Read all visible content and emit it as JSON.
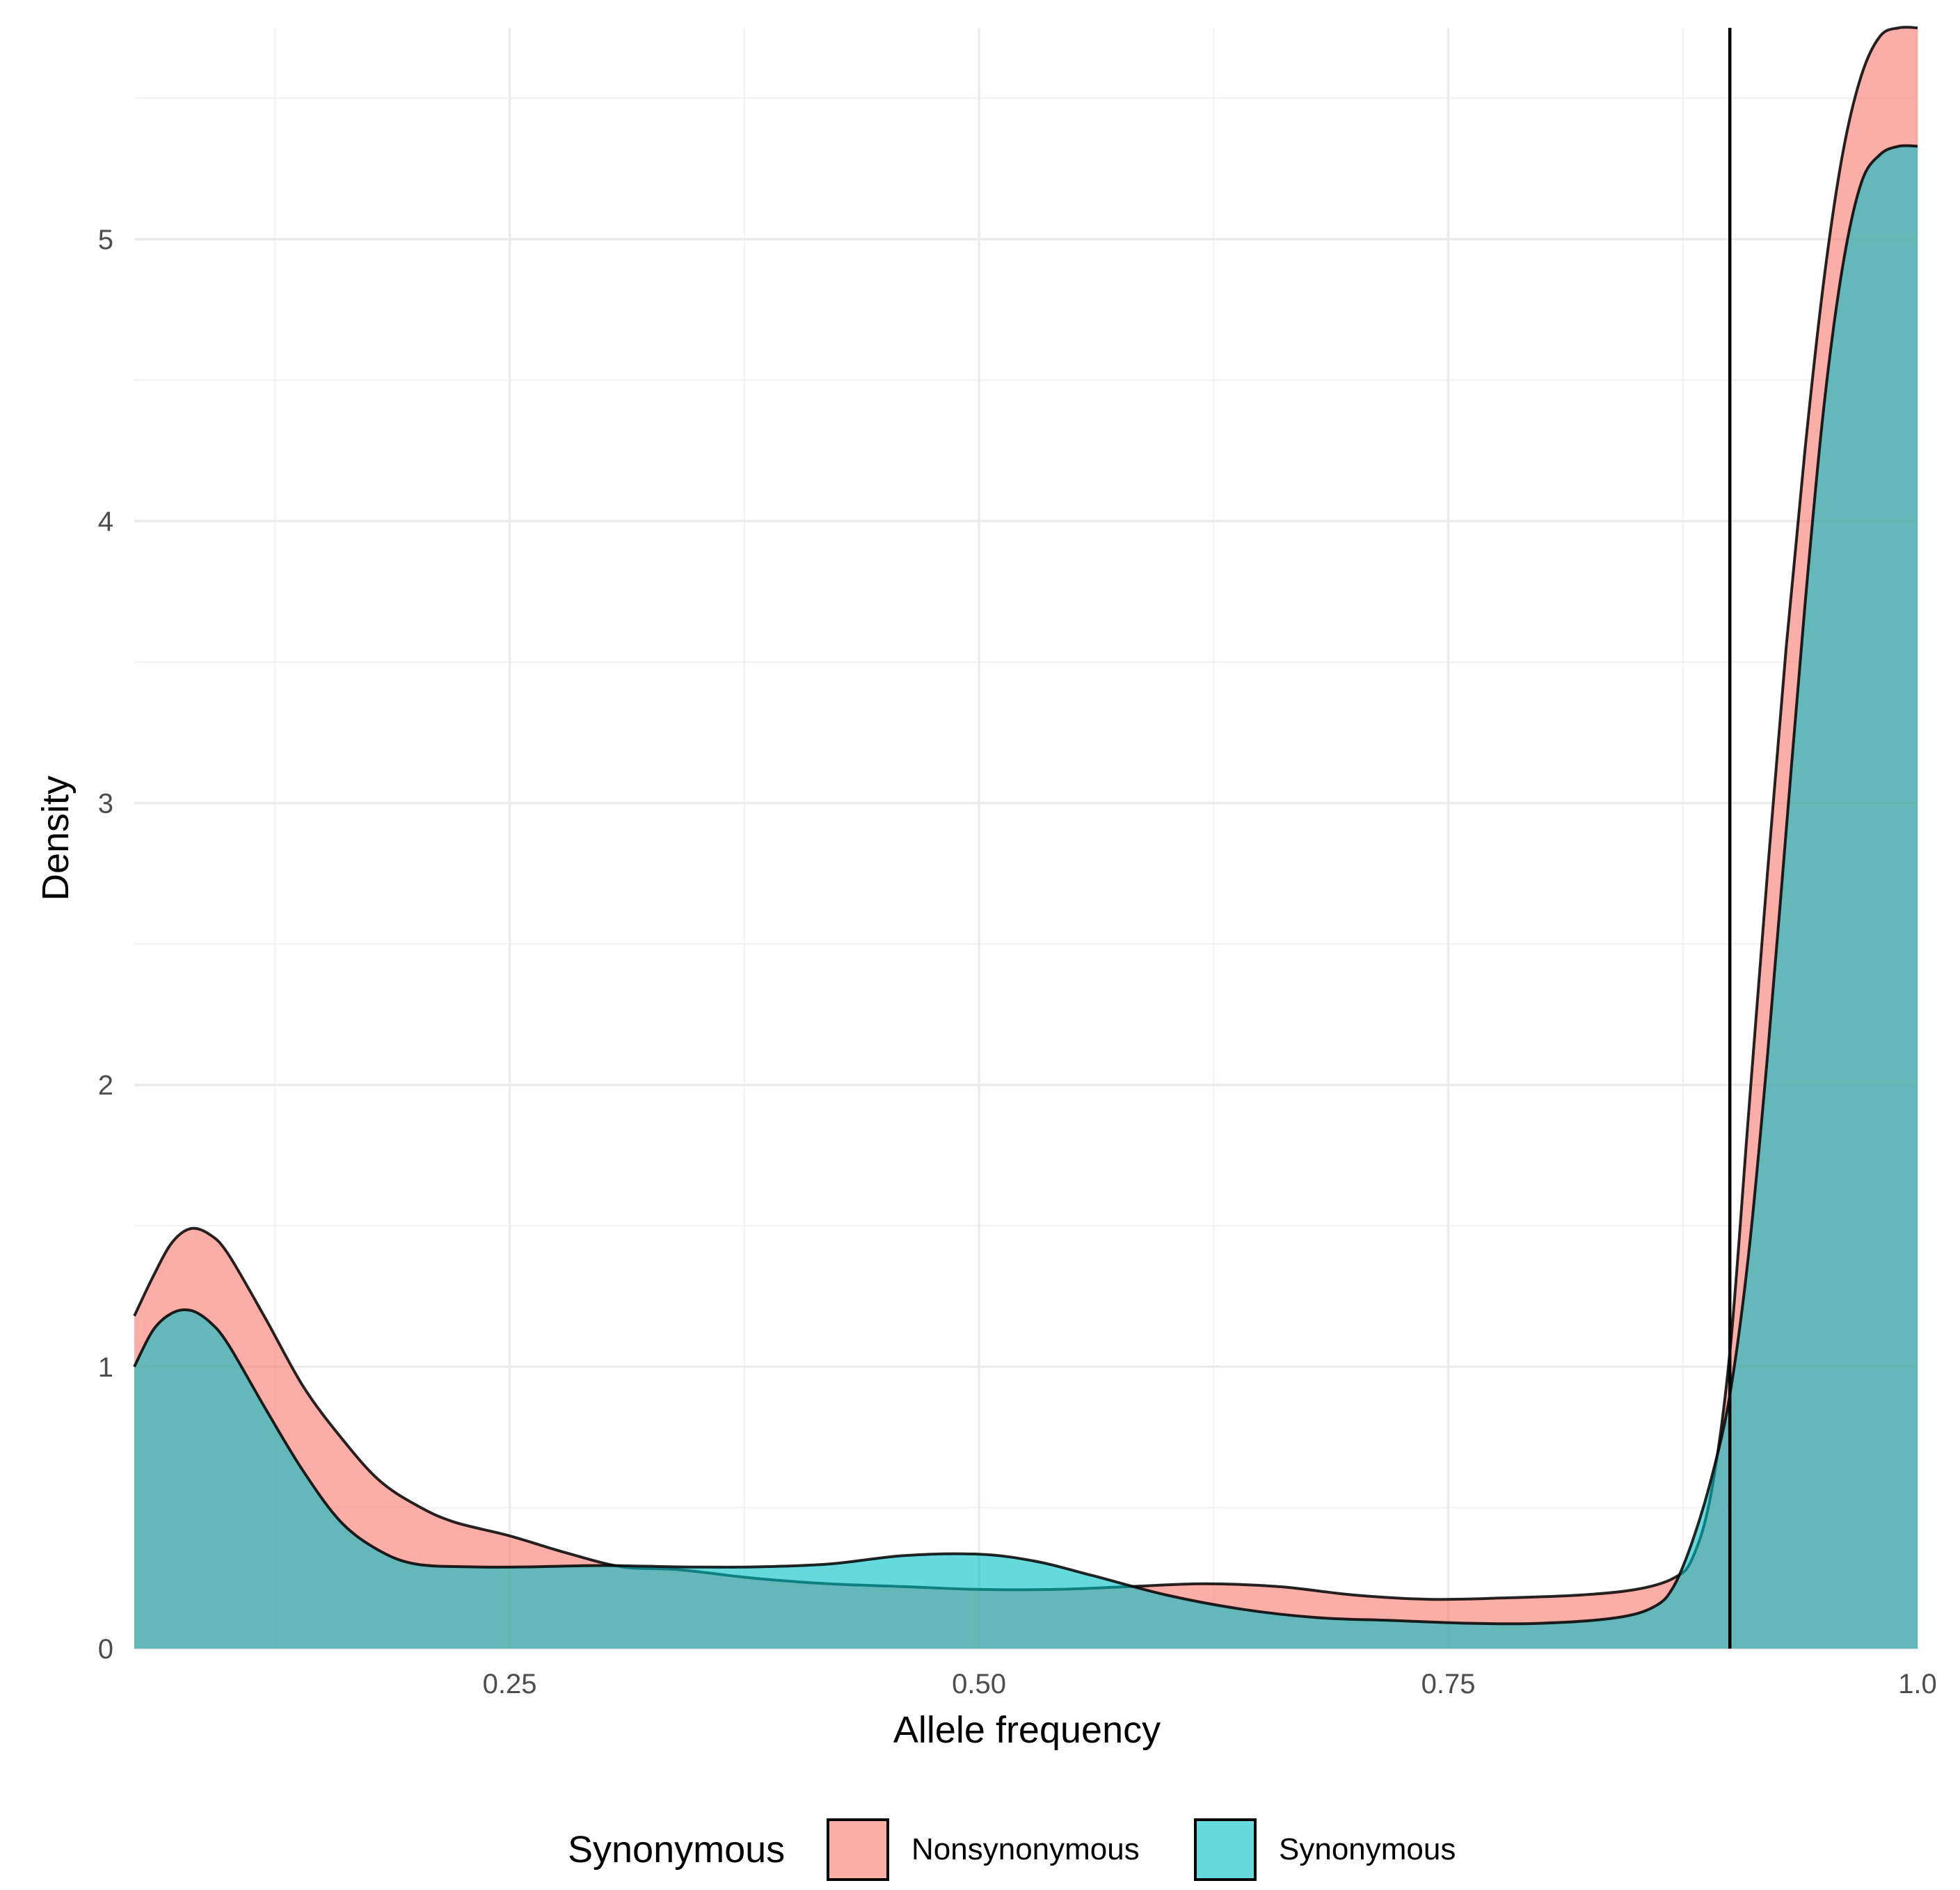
{
  "chart_data": {
    "type": "area",
    "xlabel": "Allele frequency",
    "ylabel": "Density",
    "xlim": [
      0.05,
      1.0
    ],
    "ylim": [
      0,
      5.75
    ],
    "x_ticks": [
      {
        "value": 0.25,
        "label": "0.25"
      },
      {
        "value": 0.5,
        "label": "0.50"
      },
      {
        "value": 0.75,
        "label": "0.75"
      },
      {
        "value": 1.0,
        "label": "1.0"
      }
    ],
    "y_ticks": [
      {
        "value": 0,
        "label": "0"
      },
      {
        "value": 1,
        "label": "1"
      },
      {
        "value": 2,
        "label": "2"
      },
      {
        "value": 3,
        "label": "3"
      },
      {
        "value": 4,
        "label": "4"
      },
      {
        "value": 5,
        "label": "5"
      }
    ],
    "grid": true,
    "vline": {
      "x": 0.9
    },
    "legend": {
      "title": "Synonymous",
      "position": "bottom"
    },
    "series": [
      {
        "name": "Nonsynonymous",
        "color": "#F8766D",
        "points": [
          [
            0.05,
            1.18
          ],
          [
            0.06,
            1.32
          ],
          [
            0.07,
            1.44
          ],
          [
            0.08,
            1.49
          ],
          [
            0.09,
            1.47
          ],
          [
            0.1,
            1.4
          ],
          [
            0.12,
            1.17
          ],
          [
            0.14,
            0.93
          ],
          [
            0.16,
            0.75
          ],
          [
            0.18,
            0.6
          ],
          [
            0.2,
            0.51
          ],
          [
            0.22,
            0.45
          ],
          [
            0.25,
            0.4
          ],
          [
            0.28,
            0.34
          ],
          [
            0.31,
            0.29
          ],
          [
            0.34,
            0.28
          ],
          [
            0.38,
            0.25
          ],
          [
            0.42,
            0.23
          ],
          [
            0.46,
            0.22
          ],
          [
            0.5,
            0.21
          ],
          [
            0.54,
            0.21
          ],
          [
            0.58,
            0.22
          ],
          [
            0.62,
            0.23
          ],
          [
            0.66,
            0.22
          ],
          [
            0.7,
            0.19
          ],
          [
            0.74,
            0.175
          ],
          [
            0.78,
            0.18
          ],
          [
            0.82,
            0.19
          ],
          [
            0.85,
            0.21
          ],
          [
            0.87,
            0.25
          ],
          [
            0.88,
            0.32
          ],
          [
            0.89,
            0.55
          ],
          [
            0.9,
            1.05
          ],
          [
            0.91,
            1.9
          ],
          [
            0.92,
            2.75
          ],
          [
            0.93,
            3.55
          ],
          [
            0.94,
            4.25
          ],
          [
            0.95,
            4.85
          ],
          [
            0.96,
            5.3
          ],
          [
            0.97,
            5.58
          ],
          [
            0.98,
            5.72
          ],
          [
            0.99,
            5.75
          ],
          [
            1.0,
            5.75
          ]
        ]
      },
      {
        "name": "Synonymous",
        "color": "#00BFC4",
        "points": [
          [
            0.05,
            1.0
          ],
          [
            0.06,
            1.13
          ],
          [
            0.07,
            1.19
          ],
          [
            0.08,
            1.2
          ],
          [
            0.09,
            1.16
          ],
          [
            0.1,
            1.08
          ],
          [
            0.12,
            0.85
          ],
          [
            0.14,
            0.63
          ],
          [
            0.16,
            0.45
          ],
          [
            0.18,
            0.35
          ],
          [
            0.2,
            0.3
          ],
          [
            0.23,
            0.29
          ],
          [
            0.26,
            0.29
          ],
          [
            0.3,
            0.295
          ],
          [
            0.34,
            0.29
          ],
          [
            0.38,
            0.29
          ],
          [
            0.42,
            0.3
          ],
          [
            0.46,
            0.33
          ],
          [
            0.5,
            0.335
          ],
          [
            0.53,
            0.31
          ],
          [
            0.56,
            0.26
          ],
          [
            0.6,
            0.19
          ],
          [
            0.64,
            0.14
          ],
          [
            0.68,
            0.11
          ],
          [
            0.72,
            0.1
          ],
          [
            0.76,
            0.09
          ],
          [
            0.8,
            0.09
          ],
          [
            0.84,
            0.11
          ],
          [
            0.86,
            0.15
          ],
          [
            0.87,
            0.22
          ],
          [
            0.88,
            0.38
          ],
          [
            0.89,
            0.6
          ],
          [
            0.9,
            0.9
          ],
          [
            0.91,
            1.4
          ],
          [
            0.92,
            2.1
          ],
          [
            0.93,
            2.9
          ],
          [
            0.94,
            3.7
          ],
          [
            0.95,
            4.4
          ],
          [
            0.96,
            4.9
          ],
          [
            0.97,
            5.2
          ],
          [
            0.98,
            5.3
          ],
          [
            0.99,
            5.33
          ],
          [
            1.0,
            5.33
          ]
        ]
      }
    ]
  }
}
